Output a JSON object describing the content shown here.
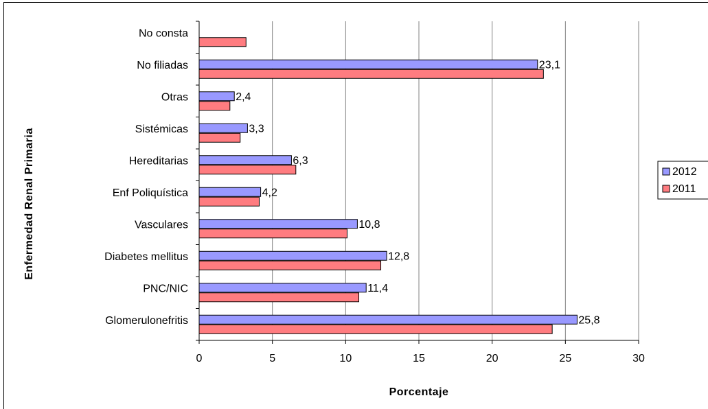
{
  "chart_data": {
    "type": "bar",
    "orientation": "horizontal",
    "title": "",
    "xlabel": "Porcentaje",
    "ylabel": "Enfermedad Renal Primaria",
    "xlim": [
      0,
      30
    ],
    "xticks": [
      "0",
      "5",
      "10",
      "15",
      "20",
      "25",
      "30"
    ],
    "grid": "vertical",
    "legend_position": "right",
    "categories": [
      "No consta",
      "No filiadas",
      "Otras",
      "Sistémicas",
      "Hereditarias",
      "Enf Poliquística",
      "Vasculares",
      "Diabetes mellitus",
      "PNC/NIC",
      "Glomerulonefritis"
    ],
    "series": [
      {
        "name": "2012",
        "color": "#9999ff",
        "values": [
          null,
          23.1,
          2.4,
          3.3,
          6.3,
          4.2,
          10.8,
          12.8,
          11.4,
          25.8
        ],
        "labels": [
          "",
          "23,1",
          "2,4",
          "3,3",
          "6,3",
          "4,2",
          "10,8",
          "12,8",
          "11,4",
          "25,8"
        ]
      },
      {
        "name": "2011",
        "color": "#ff7c80",
        "values": [
          3.2,
          23.5,
          2.1,
          2.8,
          6.6,
          4.1,
          10.1,
          12.4,
          10.9,
          24.1
        ],
        "labels": [
          "",
          "",
          "",
          "",
          "",
          "",
          "",
          "",
          "",
          ""
        ]
      }
    ]
  }
}
